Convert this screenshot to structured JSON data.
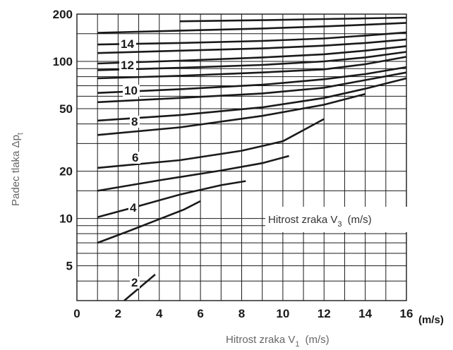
{
  "chart_data": {
    "type": "line",
    "xlabel": "Hitrost zraka V",
    "xlabel_sub": "1",
    "xlabel_unit": "(m/s)",
    "x_unit_end": "(m/s)",
    "ylabel": "Padec tlaka Δp",
    "ylabel_sub": "t",
    "inner_label": "Hitrost zraka V",
    "inner_label_sub": "3",
    "inner_label_unit": "(m/s)",
    "xlim": [
      0,
      16
    ],
    "ylim": [
      3,
      200
    ],
    "y_scale": "log",
    "x_ticks": [
      "0",
      "2",
      "4",
      "6",
      "8",
      "10",
      "12",
      "14",
      "16"
    ],
    "y_ticks": [
      "5",
      "10",
      "20",
      "50",
      "100",
      "200"
    ],
    "grid": true,
    "curve_labels": [
      "2",
      "4",
      "6",
      "8",
      "10",
      "12",
      "14"
    ],
    "series": [
      {
        "label": "2",
        "points": [
          [
            2.3,
            3.0
          ],
          [
            3.8,
            4.4
          ]
        ]
      },
      {
        "label": "",
        "points": [
          [
            1.0,
            7.0
          ],
          [
            2.5,
            8.3
          ],
          [
            4.0,
            9.9
          ],
          [
            5.2,
            11.4
          ],
          [
            6.0,
            12.9
          ]
        ]
      },
      {
        "label": "4",
        "points": [
          [
            1.0,
            10.2
          ],
          [
            3.0,
            12.0
          ],
          [
            5.0,
            14.2
          ],
          [
            7.0,
            16.3
          ],
          [
            8.2,
            17.3
          ]
        ]
      },
      {
        "label": "",
        "points": [
          [
            1.0,
            15.0
          ],
          [
            4.0,
            17.5
          ],
          [
            7.0,
            20.2
          ],
          [
            9.0,
            22.5
          ],
          [
            10.3,
            25.0
          ]
        ]
      },
      {
        "label": "6",
        "points": [
          [
            1.0,
            21.0
          ],
          [
            5.0,
            23.5
          ],
          [
            8.0,
            27.0
          ],
          [
            10.0,
            31.0
          ],
          [
            12.0,
            43.0
          ]
        ]
      },
      {
        "label": "",
        "points": [
          [
            1.0,
            34.0
          ],
          [
            5.0,
            38.0
          ],
          [
            9.0,
            45.0
          ],
          [
            12.0,
            53.0
          ],
          [
            14.0,
            62.0
          ]
        ]
      },
      {
        "label": "8",
        "points": [
          [
            1.0,
            42.0
          ],
          [
            5.0,
            45.5
          ],
          [
            9.0,
            51.0
          ],
          [
            12.0,
            58.5
          ],
          [
            14.0,
            67.0
          ],
          [
            16.0,
            78.0
          ]
        ]
      },
      {
        "label": "",
        "points": [
          [
            1.0,
            55.0
          ],
          [
            5.0,
            58.5
          ],
          [
            9.0,
            62.5
          ],
          [
            12.0,
            68.0
          ],
          [
            14.0,
            76.0
          ],
          [
            16.0,
            85.0
          ]
        ]
      },
      {
        "label": "10",
        "points": [
          [
            1.0,
            63.0
          ],
          [
            5.0,
            66.5
          ],
          [
            9.0,
            71.0
          ],
          [
            12.0,
            77.0
          ],
          [
            14.0,
            83.0
          ],
          [
            16.0,
            92.0
          ]
        ]
      },
      {
        "label": "",
        "points": [
          [
            1.0,
            78.0
          ],
          [
            5.0,
            81.0
          ],
          [
            9.0,
            85.0
          ],
          [
            12.0,
            89.0
          ],
          [
            14.0,
            96.0
          ],
          [
            16.0,
            107.0
          ]
        ]
      },
      {
        "label": "",
        "points": [
          [
            1.0,
            88.0
          ],
          [
            5.0,
            91.0
          ],
          [
            9.0,
            95.0
          ],
          [
            12.0,
            100.0
          ],
          [
            14.0,
            106.0
          ],
          [
            16.0,
            115.0
          ]
        ]
      },
      {
        "label": "12",
        "points": [
          [
            1.0,
            97.0
          ],
          [
            5.0,
            101.0
          ],
          [
            9.0,
            106.0
          ],
          [
            12.0,
            111.0
          ],
          [
            14.0,
            117.0
          ],
          [
            16.0,
            125.0
          ]
        ]
      },
      {
        "label": "",
        "points": [
          [
            1.0,
            113.0
          ],
          [
            5.0,
            117.0
          ],
          [
            9.0,
            121.0
          ],
          [
            12.0,
            126.0
          ],
          [
            14.0,
            131.0
          ],
          [
            16.0,
            138.0
          ]
        ]
      },
      {
        "label": "14",
        "points": [
          [
            1.0,
            128.0
          ],
          [
            5.0,
            131.0
          ],
          [
            9.0,
            135.0
          ],
          [
            12.0,
            140.0
          ],
          [
            14.0,
            146.0
          ],
          [
            16.0,
            153.0
          ]
        ]
      },
      {
        "label": "",
        "points": [
          [
            1.0,
            152.0
          ],
          [
            5.0,
            157.0
          ],
          [
            9.0,
            162.0
          ],
          [
            12.0,
            167.0
          ],
          [
            14.0,
            171.0
          ],
          [
            16.0,
            176.0
          ]
        ]
      },
      {
        "label": "",
        "points": [
          [
            5.0,
            180.0
          ],
          [
            9.0,
            183.0
          ],
          [
            12.0,
            186.0
          ],
          [
            14.0,
            188.0
          ],
          [
            16.0,
            190.0
          ]
        ]
      }
    ]
  }
}
